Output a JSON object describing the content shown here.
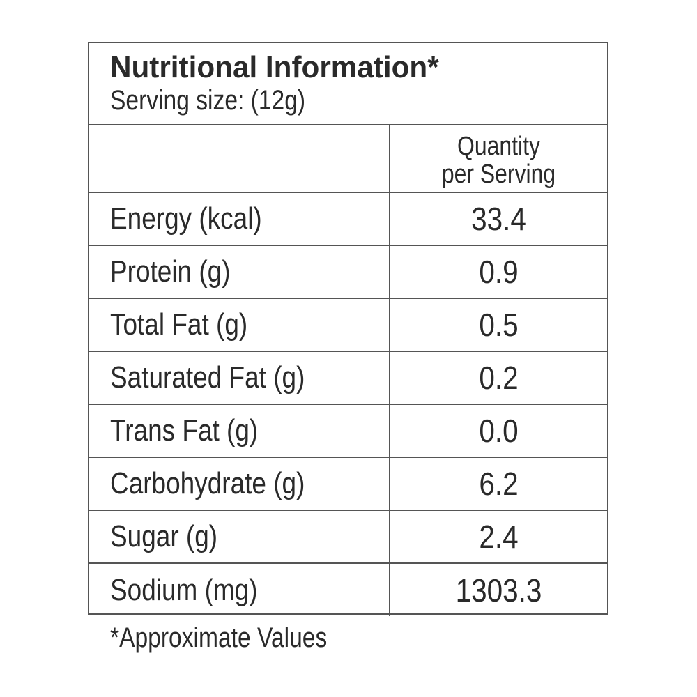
{
  "label": {
    "title": "Nutritional Information*",
    "serving_size": "Serving size: (12g)",
    "column_header": {
      "line1": "Quantity",
      "line2": "per Serving"
    },
    "rows": [
      {
        "name": "Energy (kcal)",
        "value": "33.4"
      },
      {
        "name": "Protein (g)",
        "value": "0.9"
      },
      {
        "name": "Total Fat (g)",
        "value": "0.5"
      },
      {
        "name": "Saturated Fat (g)",
        "value": "0.2"
      },
      {
        "name": "Trans Fat (g)",
        "value": "0.0"
      },
      {
        "name": "Carbohydrate (g)",
        "value": "6.2"
      },
      {
        "name": "Sugar (g)",
        "value": "2.4"
      },
      {
        "name": "Sodium (mg)",
        "value": "1303.3"
      }
    ],
    "footnote": "*Approximate Values"
  }
}
